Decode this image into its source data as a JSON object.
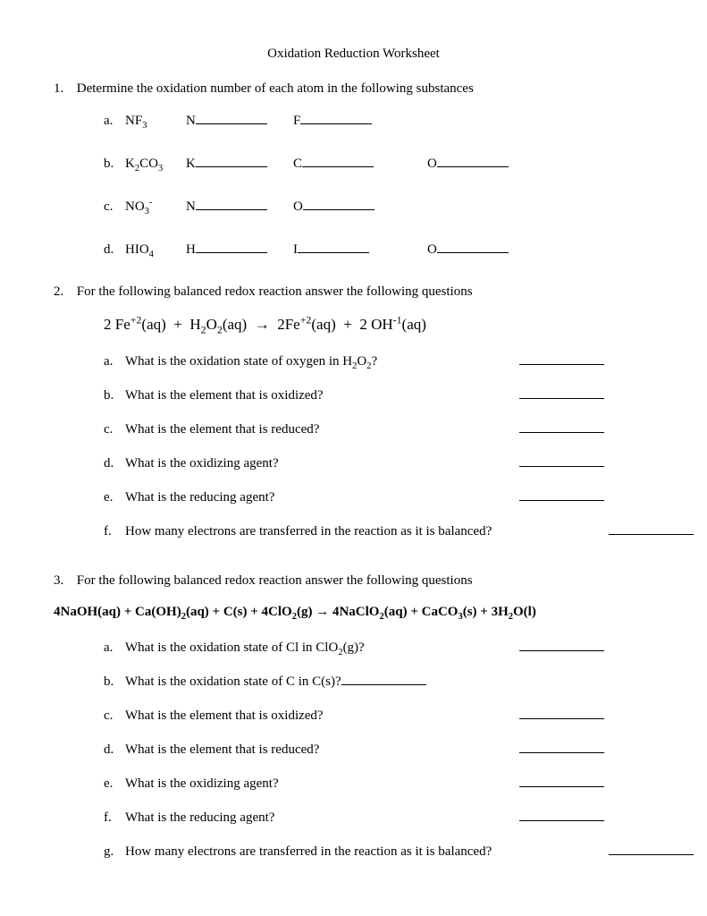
{
  "title": "Oxidation Reduction Worksheet",
  "q1": {
    "num": "1.",
    "text": "Determine the oxidation number of each atom in the following substances",
    "items": [
      {
        "letter": "a.",
        "formula_html": "NF<sub>3</sub>",
        "labelA": "N",
        "labelB": "F",
        "labelC": ""
      },
      {
        "letter": "b.",
        "formula_html": "K<sub>2</sub>CO<sub>3</sub>",
        "labelA": "K",
        "labelB": "C",
        "labelC": "O"
      },
      {
        "letter": "c.",
        "formula_html": "NO<sub>3</sub><sup>-</sup>",
        "labelA": "N",
        "labelB": "O",
        "labelC": ""
      },
      {
        "letter": "d.",
        "formula_html": "HIO<sub>4</sub>",
        "labelA": "H",
        "labelB": "I",
        "labelC": "O"
      }
    ]
  },
  "q2": {
    "num": "2.",
    "text": "For the following balanced redox reaction answer the following questions",
    "equation_html": "2 Fe<sup>+2</sup>(aq)&nbsp; +&nbsp; H<sub>2</sub>O<sub>2</sub>(aq)&nbsp; &rarr;&nbsp; 2Fe<sup>+2</sup>(aq)&nbsp; +&nbsp; 2 OH<sup>-1</sup>(aq)",
    "items": [
      {
        "letter": "a.",
        "text_html": "What is the oxidation state of oxygen in H<sub>2</sub>O<sub>2</sub>?"
      },
      {
        "letter": "b.",
        "text_html": "What is the element that is oxidized?"
      },
      {
        "letter": "c.",
        "text_html": "What is the element that is reduced?"
      },
      {
        "letter": "d.",
        "text_html": "What is the oxidizing agent?"
      },
      {
        "letter": "e.",
        "text_html": "What is the reducing agent?"
      },
      {
        "letter": "f.",
        "text_html": "How many electrons are transferred in the reaction as it is balanced?",
        "wide": true
      }
    ]
  },
  "q3": {
    "num": "3.",
    "text": "For the following balanced redox reaction answer the following questions",
    "equation_html": "4NaOH(aq) + Ca(OH)<sub>2</sub>(aq) + C(s) + 4ClO<sub>2</sub>(g) &rarr; 4NaClO<sub>2</sub>(aq) + CaCO<sub>3</sub>(s) + 3H<sub>2</sub>O(l)",
    "items": [
      {
        "letter": "a.",
        "text_html": "What is the oxidation state of Cl in ClO<sub>2</sub>(g)?"
      },
      {
        "letter": "b.",
        "text_html": "What is the oxidation state of C in C(s)?",
        "inline_blank": true
      },
      {
        "letter": "c.",
        "text_html": "What is the element that is oxidized?"
      },
      {
        "letter": "d.",
        "text_html": "What is the element that is reduced?"
      },
      {
        "letter": "e.",
        "text_html": "What is the oxidizing agent?"
      },
      {
        "letter": "f.",
        "text_html": "What is the reducing agent?"
      },
      {
        "letter": "g.",
        "text_html": "How many electrons are transferred in the reaction as it is balanced?",
        "wide": true
      }
    ]
  }
}
